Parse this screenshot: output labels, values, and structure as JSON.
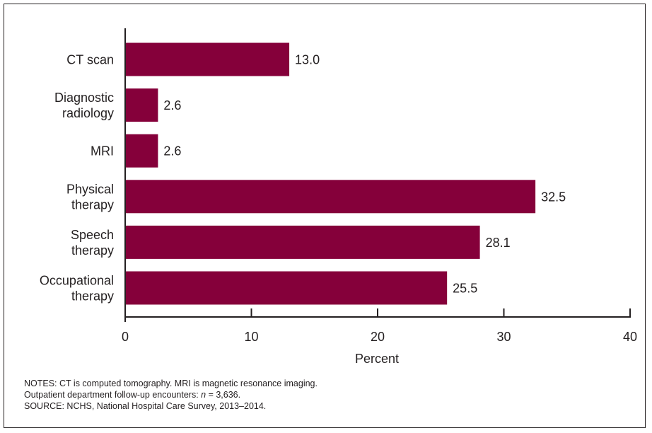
{
  "chart_data": {
    "type": "bar",
    "orientation": "horizontal",
    "categories": [
      [
        "CT scan"
      ],
      [
        "Diagnostic",
        "radiology"
      ],
      [
        "MRI"
      ],
      [
        "Physical",
        "therapy"
      ],
      [
        "Speech",
        "therapy"
      ],
      [
        "Occupational",
        "therapy"
      ]
    ],
    "values": [
      13.0,
      2.6,
      2.6,
      32.5,
      28.1,
      25.5
    ],
    "value_labels": [
      "13.0",
      "2.6",
      "2.6",
      "32.5",
      "28.1",
      "25.5"
    ],
    "xlabel": "Percent",
    "xlim": [
      0,
      40
    ],
    "xticks": [
      0,
      10,
      20,
      30,
      40
    ],
    "bar_color": "#85003a",
    "grid": false,
    "legend": "none"
  },
  "notes": {
    "line1": "NOTES: CT is computed tomography. MRI is magnetic resonance imaging.",
    "line2_prefix": "Outpatient department follow-up encounters: ",
    "line2_n": "n",
    "line2_suffix": " = 3,636.",
    "line3": "SOURCE: NCHS, National Hospital Care Survey, 2013–2014."
  }
}
